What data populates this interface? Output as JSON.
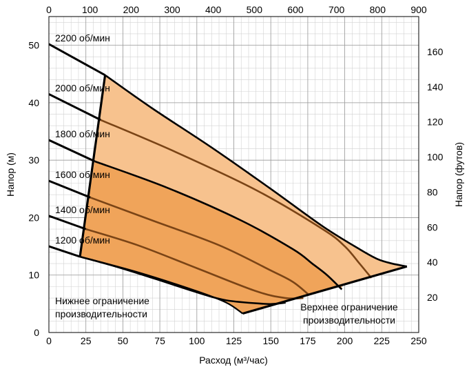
{
  "chart_data": {
    "type": "line",
    "title": "",
    "xlabel": "Расход (м³/час)",
    "ylabel": "Напор (м)",
    "y2label": "Напор (футов)",
    "xlim": [
      0,
      250
    ],
    "ylim": [
      0,
      55
    ],
    "x_ticks": [
      0,
      25,
      50,
      75,
      100,
      125,
      150,
      175,
      200,
      225,
      250
    ],
    "y_ticks": [
      0,
      10,
      20,
      30,
      40,
      50
    ],
    "x2lim": [
      0,
      900
    ],
    "x2_ticks": [
      0,
      100,
      200,
      300,
      400,
      500,
      600,
      700,
      800,
      900
    ],
    "y2lim": [
      0,
      180
    ],
    "y2_ticks": [
      20,
      40,
      60,
      80,
      100,
      120,
      140,
      160
    ],
    "grid": true,
    "series": [
      {
        "name": "1200 об/мин",
        "x": [
          0,
          21,
          45,
          70,
          100,
          120,
          145,
          153,
          160
        ],
        "y": [
          15,
          13.2,
          11.5,
          9.5,
          7,
          5.6,
          5.0,
          5.0,
          5.2
        ]
      },
      {
        "name": "1400 об/мин",
        "x": [
          0,
          25,
          60,
          100,
          140,
          160,
          172
        ],
        "y": [
          20.3,
          18,
          15.2,
          11.2,
          7.2,
          6.0,
          6.0
        ]
      },
      {
        "name": "1600 об/мин",
        "x": [
          0,
          28,
          70,
          115,
          150,
          165,
          176
        ],
        "y": [
          26.4,
          23.5,
          19.5,
          15.2,
          10.8,
          8.8,
          6.5
        ]
      },
      {
        "name": "1800 об/мин",
        "x": [
          0,
          31,
          80,
          130,
          165,
          178,
          188,
          198
        ],
        "y": [
          33.5,
          29.8,
          25.2,
          19.5,
          14.5,
          12.0,
          10.0,
          7.5
        ]
      },
      {
        "name": "2000 об/мин",
        "x": [
          0,
          35,
          85,
          140,
          185,
          200,
          210,
          218
        ],
        "y": [
          41.5,
          37,
          31.5,
          24.8,
          18.0,
          15.0,
          12.0,
          9.5
        ]
      },
      {
        "name": "2200 об/мин",
        "x": [
          0,
          38,
          70,
          110,
          150,
          185,
          210,
          222,
          232,
          242
        ],
        "y": [
          50.2,
          44.8,
          39.0,
          32.2,
          25.0,
          18.5,
          14.5,
          12.8,
          12.0,
          11.5
        ]
      }
    ],
    "limits": {
      "lower": {
        "x": [
          21,
          38
        ],
        "y": [
          13.2,
          44.8
        ]
      },
      "upper": {
        "x": [
          131,
          242
        ],
        "y": [
          3.3,
          11.5
        ]
      },
      "bottom": {
        "x": [
          21,
          60,
          100,
          120,
          131
        ],
        "y": [
          13.2,
          10.5,
          7.2,
          5.2,
          3.3
        ]
      }
    },
    "annotations": {
      "lower": [
        "Нижнее ограничение",
        "производительности"
      ],
      "upper": [
        "Верхнее ограничение",
        "производительности"
      ]
    },
    "fills": {
      "upper_region": "#f7c28e",
      "lower_region": "#f0a45a",
      "inner_curve": "#7a4416"
    }
  }
}
